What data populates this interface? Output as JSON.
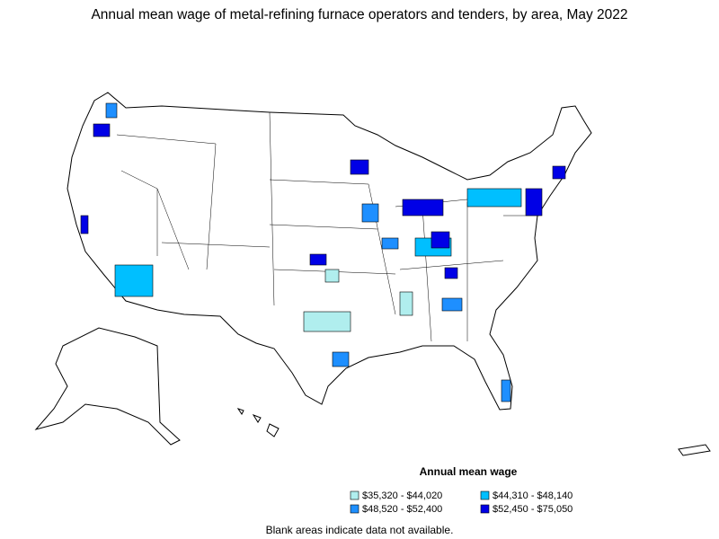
{
  "title": "Annual mean wage of metal-refining furnace operators and tenders, by area, May 2022",
  "legend": {
    "title": "Annual mean wage",
    "items": [
      {
        "label": "$35,320 - $44,020",
        "color": "#b0eeee"
      },
      {
        "label": "$44,310 - $48,140",
        "color": "#00bfff"
      },
      {
        "label": "$48,520 - $52,400",
        "color": "#1e8fff"
      },
      {
        "label": "$52,450 - $75,050",
        "color": "#0000e6"
      }
    ]
  },
  "footnote": "Blank areas indicate data not available."
}
